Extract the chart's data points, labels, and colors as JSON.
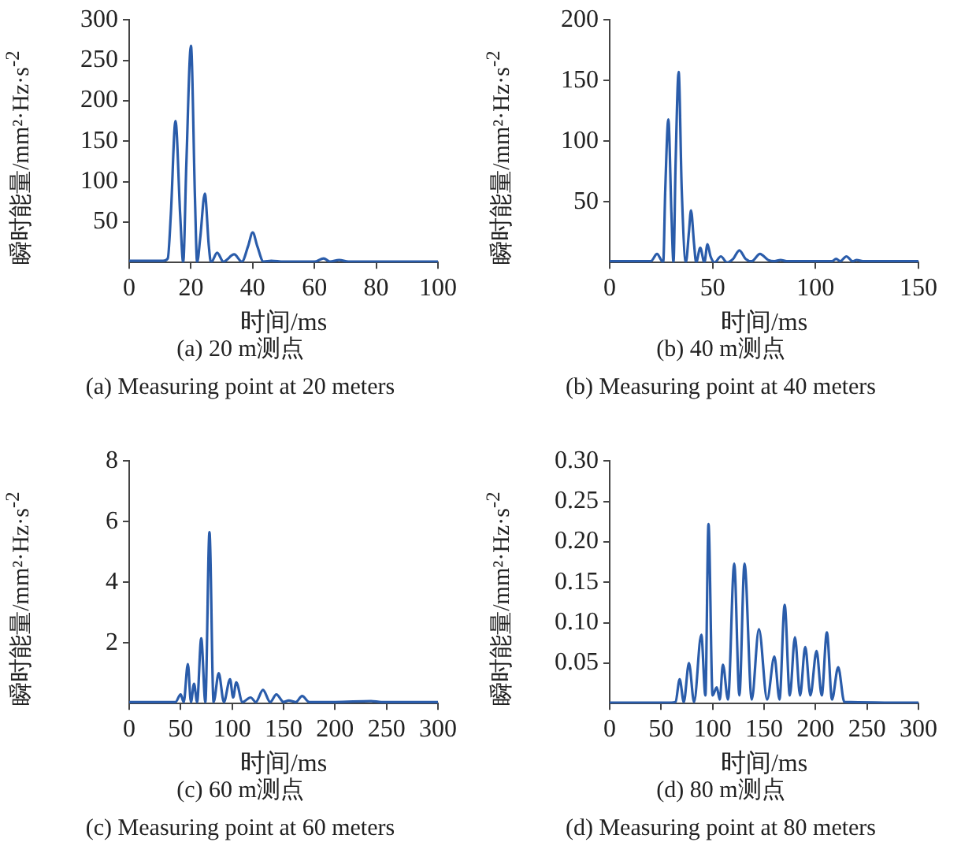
{
  "chart_data": [
    {
      "type": "line",
      "title": "(a) 20 m测点",
      "subtitle": "(a) Measuring point at 20 meters",
      "xlabel": "时间/ms",
      "ylabel": "瞬时能量/mm²·Hz·s$^{-2}$",
      "xlim": [
        0,
        100
      ],
      "ylim": [
        0,
        300
      ],
      "xticks": [
        0,
        20,
        40,
        60,
        80,
        100
      ],
      "yticks": [
        50,
        100,
        150,
        200,
        250,
        300
      ],
      "grid": false,
      "legend": false,
      "marker": "none",
      "x": [
        0,
        11,
        12.5,
        13.5,
        15,
        16.5,
        17.5,
        18.5,
        20,
        21.3,
        22,
        23,
        24.5,
        25.8,
        26.5,
        28.5,
        30.5,
        34,
        36.5,
        38.5,
        40,
        41.5,
        43.5,
        46,
        50,
        60,
        63,
        65,
        68,
        71,
        100
      ],
      "series": [
        {
          "color": "#2a5caa",
          "values": [
            2,
            2,
            5,
            60,
            175,
            60,
            0,
            120,
            268,
            80,
            0,
            30,
            85,
            20,
            0,
            12,
            1,
            10,
            1,
            20,
            37,
            20,
            1,
            2,
            1,
            1,
            5,
            1,
            3,
            1,
            1
          ]
        }
      ]
    },
    {
      "type": "line",
      "title": "(b) 40 m测点",
      "subtitle": "(b) Measuring point at 40 meters",
      "xlabel": "时间/ms",
      "ylabel": "瞬时能量/mm²·Hz·s$^{-2}$",
      "xlim": [
        0,
        150
      ],
      "ylim": [
        0,
        200
      ],
      "xticks": [
        0,
        50,
        100,
        150
      ],
      "yticks": [
        50,
        100,
        150,
        200
      ],
      "grid": false,
      "legend": false,
      "marker": "none",
      "x": [
        0,
        20,
        23,
        25,
        26,
        27,
        28.5,
        30,
        31,
        32,
        33.5,
        35,
        37,
        38.5,
        39.5,
        41,
        42,
        44,
        46,
        47.5,
        49,
        51,
        54,
        57,
        60,
        63,
        66,
        69,
        73,
        77,
        80,
        83,
        86,
        108,
        110,
        112,
        115,
        118,
        120,
        123,
        150
      ],
      "series": [
        {
          "color": "#2a5caa",
          "values": [
            1,
            1,
            7,
            2,
            0,
            60,
            118,
            40,
            0,
            80,
            157,
            60,
            0,
            25,
            43,
            15,
            0,
            12,
            0,
            15,
            5,
            0,
            5,
            0,
            3,
            10,
            3,
            1,
            7,
            2,
            1,
            2,
            1,
            1,
            3,
            1,
            5,
            1,
            2,
            1,
            1
          ]
        }
      ]
    },
    {
      "type": "line",
      "title": "(c) 60 m测点",
      "subtitle": "(c) Measuring point at 60 meters",
      "xlabel": "时间/ms",
      "ylabel": "瞬时能量/mm²·Hz·s$^{-2}$",
      "xlim": [
        0,
        300
      ],
      "ylim": [
        0,
        8
      ],
      "xticks": [
        0,
        50,
        100,
        150,
        200,
        250,
        300
      ],
      "yticks": [
        2,
        4,
        6,
        8
      ],
      "grid": false,
      "legend": false,
      "marker": "none",
      "x": [
        0,
        45,
        50,
        53,
        57,
        60,
        63,
        66,
        70,
        74,
        78,
        82,
        87,
        92,
        98,
        101,
        104,
        110,
        118,
        123,
        130,
        137,
        143,
        150,
        155,
        162,
        168,
        175,
        190,
        200,
        235,
        245,
        300
      ],
      "series": [
        {
          "color": "#2a5caa",
          "values": [
            0.05,
            0.05,
            0.3,
            0.05,
            1.3,
            0.05,
            0.65,
            0.05,
            2.15,
            0.05,
            5.65,
            0.05,
            1.0,
            0.05,
            0.8,
            0.2,
            0.7,
            0.05,
            0.2,
            0.05,
            0.45,
            0.05,
            0.3,
            0.05,
            0.1,
            0.05,
            0.25,
            0.05,
            0.05,
            0.05,
            0.08,
            0.05,
            0.05
          ]
        }
      ]
    },
    {
      "type": "line",
      "title": "(d) 80 m测点",
      "subtitle": "(d) Measuring point at 80 meters",
      "xlabel": "时间/ms",
      "ylabel": "瞬时能量/mm²·Hz·s$^{-2}$",
      "xlim": [
        0,
        300
      ],
      "ylim": [
        0,
        0.3
      ],
      "xticks": [
        0,
        50,
        100,
        150,
        200,
        250,
        300
      ],
      "yticks": [
        0.05,
        {
          "value": 0.1,
          "label": "0.10"
        },
        0.15,
        {
          "value": 0.2,
          "label": "0.20"
        },
        0.25,
        {
          "value": 0.3,
          "label": "0.30"
        }
      ],
      "grid": false,
      "legend": false,
      "marker": "none",
      "x": [
        0,
        60,
        64,
        68,
        72,
        77,
        82,
        89,
        93,
        96,
        100,
        104,
        107,
        110,
        115,
        121,
        126,
        131,
        138,
        145,
        153,
        160,
        165,
        170,
        175,
        180,
        185,
        190,
        195,
        201,
        206,
        211,
        216,
        222,
        228,
        300
      ],
      "series": [
        {
          "color": "#2a5caa",
          "values": [
            0.001,
            0.001,
            0.002,
            0.03,
            0.002,
            0.05,
            0.002,
            0.085,
            0.01,
            0.222,
            0.01,
            0.02,
            0.005,
            0.048,
            0.005,
            0.173,
            0.01,
            0.173,
            0.005,
            0.092,
            0.005,
            0.058,
            0.005,
            0.122,
            0.01,
            0.082,
            0.01,
            0.07,
            0.01,
            0.065,
            0.01,
            0.088,
            0.005,
            0.045,
            0.002,
            0.001
          ]
        }
      ]
    }
  ]
}
